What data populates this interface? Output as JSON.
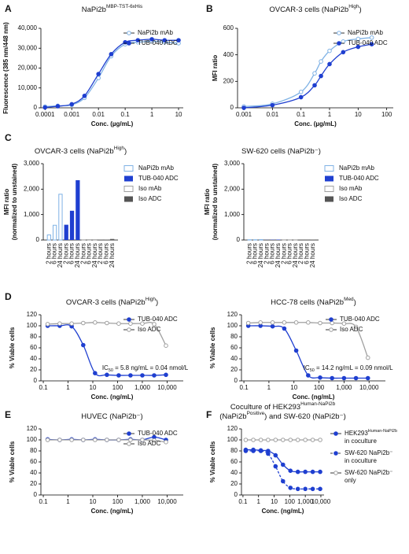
{
  "chart_data": [
    {
      "type": "line",
      "panel_label": "A",
      "title_lines": [
        [
          {
            "text": "NaPi2b"
          },
          {
            "text": "MBP-TST-6xHis",
            "sup": true
          }
        ]
      ],
      "x_label": "Conc. (µg/mL)",
      "y_label": [
        "Fluorescence (385 nm/448 nm)"
      ],
      "xscale": "log",
      "xlim": [
        7e-05,
        15
      ],
      "xticks": [
        0.0001,
        0.001,
        0.01,
        0.1,
        1,
        10
      ],
      "ylim": [
        0,
        40000
      ],
      "yticks": [
        0,
        {
          "value": 10000,
          "label": "10,000"
        },
        {
          "value": 20000,
          "label": "20,000"
        },
        {
          "value": 30000,
          "label": "30,000"
        },
        {
          "value": 40000,
          "label": "40,000"
        }
      ],
      "legend": "upper right",
      "x": [
        0.0001,
        0.0003,
        0.001,
        0.003,
        0.01,
        0.03,
        0.1,
        0.3,
        1,
        3,
        10
      ],
      "series": [
        {
          "name": "NaPi2b mAb",
          "color": "#7fb2e5",
          "marker": "open",
          "values": [
            600,
            1000,
            1500,
            5000,
            15000,
            26000,
            32000,
            33000,
            33500,
            33000,
            32500
          ]
        },
        {
          "name": "TUB-040 ADC",
          "color": "#1f3fd0",
          "marker": "filled",
          "values": [
            200,
            800,
            1800,
            6000,
            17000,
            27000,
            33000,
            34000,
            34500,
            34000,
            34000
          ]
        }
      ]
    },
    {
      "type": "line",
      "panel_label": "B",
      "title_lines": [
        [
          {
            "text": "OVCAR-3 cells (NaPi2b"
          },
          {
            "text": "High",
            "sup": true
          },
          {
            "text": ")"
          }
        ]
      ],
      "x_label": "Conc. (µg/mL)",
      "y_label": [
        "MFI ratio"
      ],
      "xscale": "log",
      "xlim": [
        0.0006,
        170
      ],
      "xticks": [
        0.001,
        0.01,
        0.1,
        1,
        10,
        100
      ],
      "ylim": [
        0,
        600
      ],
      "yticks": [
        0,
        200,
        400,
        600
      ],
      "legend": "upper right",
      "x": [
        0.001,
        0.01,
        0.1,
        0.3,
        0.5,
        1,
        3,
        10,
        30
      ],
      "series": [
        {
          "name": "NaPi2b mAb",
          "color": "#7fb2e5",
          "marker": "open",
          "values": [
            10,
            30,
            120,
            260,
            350,
            430,
            500,
            520,
            530
          ]
        },
        {
          "name": "TUB-040 ADC",
          "color": "#1f3fd0",
          "marker": "filled",
          "values": [
            0,
            20,
            80,
            170,
            240,
            330,
            420,
            460,
            480
          ]
        }
      ]
    },
    {
      "type": "bar",
      "panel_label": "C",
      "title_lines": [
        [
          {
            "text": "OVCAR-3 cells (NaPi2b"
          },
          {
            "text": "High",
            "sup": true
          },
          {
            "text": ")"
          }
        ]
      ],
      "y_label": [
        "MFI ratio",
        "(normalized to unstained)"
      ],
      "ylim": [
        0,
        3000
      ],
      "yticks": [
        0,
        {
          "value": 1000,
          "label": "1,000"
        },
        {
          "value": 2000,
          "label": "2,000"
        },
        {
          "value": 3000,
          "label": "3,000"
        }
      ],
      "legend": "outside right",
      "categories": [
        "2 hours",
        "6 hours",
        "24 hours"
      ],
      "series": [
        {
          "name": "NaPi2b mAb",
          "color": "#7fb2e5",
          "style": "open",
          "values": [
            200,
            580,
            1800
          ]
        },
        {
          "name": "TUB-040 ADC",
          "color": "#1f3fd0",
          "style": "filled",
          "values": [
            600,
            1150,
            2350
          ]
        },
        {
          "name": "Iso mAb",
          "color": "#a0a0a0",
          "style": "open",
          "values": [
            5,
            10,
            10
          ]
        },
        {
          "name": "Iso ADC",
          "color": "#555555",
          "style": "filled",
          "values": [
            10,
            15,
            40
          ]
        }
      ]
    },
    {
      "type": "bar",
      "title_lines": [
        [
          {
            "text": "SW-620 cells (NaPi2b⁻)"
          }
        ]
      ],
      "y_label": [
        "MFI ratio",
        "(normalized to unstained)"
      ],
      "ylim": [
        0,
        3000
      ],
      "yticks": [
        0,
        {
          "value": 1000,
          "label": "1,000"
        },
        {
          "value": 2000,
          "label": "2,000"
        },
        {
          "value": 3000,
          "label": "3,000"
        }
      ],
      "legend": "outside right",
      "categories": [
        "2 hours",
        "6 hours",
        "24 hours"
      ],
      "series": [
        {
          "name": "NaPi2b mAb",
          "color": "#7fb2e5",
          "style": "open",
          "values": [
            10,
            10,
            15
          ]
        },
        {
          "name": "TUB-040 ADC",
          "color": "#1f3fd0",
          "style": "filled",
          "values": [
            5,
            10,
            15
          ]
        },
        {
          "name": "Iso mAb",
          "color": "#a0a0a0",
          "style": "open",
          "values": [
            5,
            5,
            5
          ]
        },
        {
          "name": "Iso ADC",
          "color": "#555555",
          "style": "filled",
          "values": [
            5,
            5,
            10
          ]
        }
      ]
    },
    {
      "type": "line",
      "panel_label": "D",
      "title_lines": [
        [
          {
            "text": "OVCAR-3 cells (NaPi2b"
          },
          {
            "text": "High",
            "sup": true
          },
          {
            "text": ")"
          }
        ]
      ],
      "x_label": "Conc. (ng/mL)",
      "y_label": [
        "% Viable cells"
      ],
      "xscale": "log",
      "xlim": [
        0.08,
        45000
      ],
      "xticks": [
        0.1,
        1,
        10,
        100,
        {
          "value": 1000,
          "label": "1,000"
        },
        {
          "value": 10000,
          "label": "10,000"
        }
      ],
      "ylim": [
        0,
        120
      ],
      "yticks": [
        0,
        20,
        40,
        60,
        80,
        100,
        120
      ],
      "legend": "upper right",
      "annotation_parts": [
        {
          "text": "IC"
        },
        {
          "text": "50",
          "sub": true
        },
        {
          "text": " = 5.8 ng/mL = 0.04 nmol/L"
        }
      ],
      "x": [
        0.15,
        0.46,
        1.4,
        4.1,
        12.3,
        37,
        111,
        333,
        1000,
        3000,
        9000
      ],
      "series": [
        {
          "name": "TUB-040 ADC",
          "color": "#1f3fd0",
          "marker": "filled",
          "values": [
            100,
            100,
            99,
            65,
            14,
            11,
            10,
            10,
            10,
            10,
            11
          ]
        },
        {
          "name": "Iso ADC",
          "color": "#a0a0a0",
          "marker": "open",
          "values": [
            103,
            104,
            104,
            105,
            106,
            105,
            104,
            104,
            104,
            103,
            64
          ]
        }
      ]
    },
    {
      "type": "line",
      "title_lines": [
        [
          {
            "text": "HCC-78 cells (NaPi2b"
          },
          {
            "text": "Med",
            "sup": true
          },
          {
            "text": ")"
          }
        ]
      ],
      "x_label": "Conc. (ng/mL)",
      "y_label": [
        "% Viable cells"
      ],
      "xscale": "log",
      "xlim": [
        0.08,
        45000
      ],
      "xticks": [
        0.1,
        1,
        10,
        100,
        {
          "value": 1000,
          "label": "1,000"
        },
        {
          "value": 10000,
          "label": "10,000"
        }
      ],
      "ylim": [
        0,
        120
      ],
      "yticks": [
        0,
        20,
        40,
        60,
        80,
        100,
        120
      ],
      "legend": "upper right",
      "annotation_parts": [
        {
          "text": "IC"
        },
        {
          "text": "50",
          "sub": true
        },
        {
          "text": " = 14.2 ng/mL = 0.09 nmol/L"
        }
      ],
      "x": [
        0.15,
        0.46,
        1.4,
        4.1,
        12.3,
        37,
        111,
        333,
        1000,
        3000,
        9000
      ],
      "series": [
        {
          "name": "TUB-040 ADC",
          "color": "#1f3fd0",
          "marker": "filled",
          "values": [
            100,
            100,
            99,
            95,
            55,
            10,
            6,
            5,
            5,
            5,
            5
          ]
        },
        {
          "name": "Iso ADC",
          "color": "#a0a0a0",
          "marker": "open",
          "values": [
            105,
            106,
            106,
            106,
            106,
            106,
            105,
            105,
            104,
            98,
            42
          ]
        }
      ]
    },
    {
      "type": "line",
      "panel_label": "E",
      "title_lines": [
        [
          {
            "text": "HUVEC (NaPi2b⁻)"
          }
        ]
      ],
      "x_label": "Conc. (ng/mL)",
      "y_label": [
        "% Viable cells"
      ],
      "xscale": "log",
      "xlim": [
        0.08,
        45000
      ],
      "xticks": [
        0.1,
        1,
        10,
        100,
        {
          "value": 1000,
          "label": "1,000"
        },
        {
          "value": 10000,
          "label": "10,000"
        }
      ],
      "ylim": [
        0,
        120
      ],
      "yticks": [
        0,
        20,
        40,
        60,
        80,
        100,
        120
      ],
      "legend": "upper right",
      "x": [
        0.15,
        0.46,
        1.4,
        4.1,
        12.3,
        37,
        111,
        333,
        1000,
        3000,
        9000
      ],
      "series": [
        {
          "name": "TUB-040 ADC",
          "color": "#1f3fd0",
          "marker": "filled",
          "values": [
            101,
            100,
            101,
            100,
            101,
            100,
            100,
            101,
            100,
            105,
            100
          ]
        },
        {
          "name": "Iso ADC",
          "color": "#a0a0a0",
          "marker": "open",
          "values": [
            100,
            100,
            100,
            100,
            100,
            100,
            100,
            100,
            100,
            99,
            96
          ]
        }
      ]
    },
    {
      "type": "line",
      "panel_label": "F",
      "title_lines": [
        [
          {
            "text": "Coculture of HEK293"
          },
          {
            "text": "Human-NaPi2b",
            "sup": true
          }
        ],
        [
          {
            "text": "(NaPi2b"
          },
          {
            "text": "Positive",
            "sup": true
          },
          {
            "text": ") and SW-620 (NaPi2b⁻)"
          }
        ]
      ],
      "x_label": "Conc. (ng/mL)",
      "y_label": [
        "% Viable cells"
      ],
      "xscale": "log",
      "xlim": [
        0.08,
        16000
      ],
      "xticks": [
        0.1,
        1,
        10,
        100,
        {
          "value": 1000,
          "label": "1,000"
        },
        {
          "value": 10000,
          "label": "10,000"
        }
      ],
      "ylim": [
        0,
        120
      ],
      "yticks": [
        0,
        20,
        40,
        60,
        80,
        100,
        120
      ],
      "legend": "outside right",
      "x": [
        0.15,
        0.46,
        1.4,
        4.1,
        12.3,
        37,
        111,
        333,
        1000,
        3000,
        9000
      ],
      "series": [
        {
          "name_lines": [
            [
              {
                "text": "HEK293"
              },
              {
                "text": "Human-NaPi2b",
                "sup": true
              }
            ],
            [
              {
                "text": "in coculture"
              }
            ]
          ],
          "color": "#1f3fd0",
          "marker": "filled",
          "values": [
            82,
            82,
            81,
            80,
            72,
            55,
            44,
            42,
            42,
            42,
            42
          ]
        },
        {
          "name_lines": [
            [
              {
                "text": "SW-620 NaPi2b⁻"
              }
            ],
            [
              {
                "text": "in coculture"
              }
            ]
          ],
          "color": "#1f3fd0",
          "marker": "filled",
          "dashed": true,
          "values": [
            80,
            80,
            80,
            75,
            52,
            25,
            13,
            11,
            11,
            11,
            11
          ]
        },
        {
          "name_lines": [
            [
              {
                "text": "SW-620 NaPi2b⁻"
              }
            ],
            [
              {
                "text": "only"
              }
            ]
          ],
          "color": "#a0a0a0",
          "marker": "open",
          "values": [
            100,
            100,
            100,
            100,
            100,
            100,
            100,
            100,
            100,
            100,
            100
          ]
        }
      ]
    }
  ]
}
